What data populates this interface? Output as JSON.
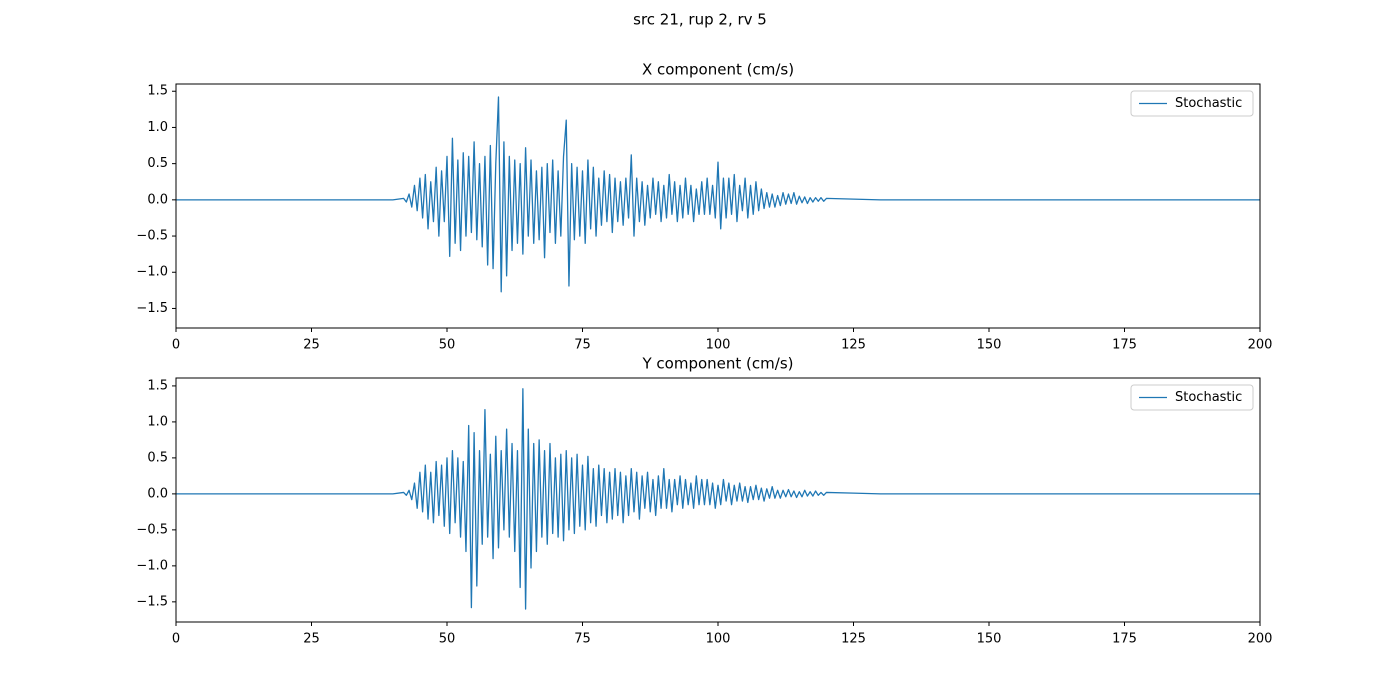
{
  "title": "src 21, rup 2, rv 5",
  "chart_data": [
    {
      "type": "line",
      "title": "X component (cm/s)",
      "x": [
        0,
        40,
        42,
        42.5,
        43,
        43.5,
        44,
        44.5,
        45,
        45.5,
        46,
        46.5,
        47,
        47.5,
        48,
        48.5,
        49,
        49.5,
        50,
        50.5,
        51,
        51.5,
        52,
        52.5,
        53,
        53.5,
        54,
        54.5,
        55,
        55.5,
        56,
        56.5,
        57,
        57.5,
        58,
        58.5,
        59,
        59.5,
        60,
        60.5,
        61,
        61.5,
        62,
        62.5,
        63,
        63.5,
        64,
        64.5,
        65,
        65.5,
        66,
        66.5,
        67,
        67.5,
        68,
        68.5,
        69,
        69.5,
        70,
        70.5,
        71,
        71.5,
        72,
        72.5,
        73,
        73.5,
        74,
        74.5,
        75,
        75.5,
        76,
        76.5,
        77,
        77.5,
        78,
        78.5,
        79,
        79.5,
        80,
        80.5,
        81,
        81.5,
        82,
        82.5,
        83,
        83.5,
        84,
        84.5,
        85,
        85.5,
        86,
        86.5,
        87,
        87.5,
        88,
        88.5,
        89,
        89.5,
        90,
        90.5,
        91,
        91.5,
        92,
        92.5,
        93,
        93.5,
        94,
        94.5,
        95,
        95.5,
        96,
        96.5,
        97,
        97.5,
        98,
        98.5,
        99,
        99.5,
        100,
        100.5,
        101,
        101.5,
        102,
        102.5,
        103,
        103.5,
        104,
        104.5,
        105,
        105.5,
        106,
        106.5,
        107,
        107.5,
        108,
        108.5,
        109,
        109.5,
        110,
        110.5,
        111,
        111.5,
        112,
        112.5,
        113,
        113.5,
        114,
        114.5,
        115,
        115.5,
        116,
        116.5,
        117,
        117.5,
        118,
        118.5,
        119,
        119.5,
        120,
        125,
        130,
        200
      ],
      "series": [
        {
          "name": "Stochastic",
          "color": "#1f77b4",
          "values": [
            0,
            0,
            0.02,
            -0.03,
            0.08,
            -0.1,
            0.2,
            -0.15,
            0.3,
            -0.25,
            0.35,
            -0.4,
            0.25,
            -0.3,
            0.45,
            -0.5,
            0.4,
            -0.3,
            0.6,
            -0.78,
            0.85,
            -0.6,
            0.55,
            -0.7,
            0.65,
            -0.5,
            0.6,
            -0.45,
            0.8,
            -0.55,
            0.5,
            -0.65,
            0.6,
            -0.9,
            0.75,
            -0.95,
            0.5,
            1.42,
            -1.27,
            0.8,
            -1.05,
            0.6,
            -0.7,
            0.55,
            -0.6,
            0.5,
            -0.75,
            0.72,
            -0.5,
            0.55,
            -0.6,
            0.4,
            -0.55,
            0.45,
            -0.8,
            0.5,
            -0.45,
            0.55,
            -0.6,
            0.4,
            -0.5,
            0.6,
            1.1,
            -1.19,
            0.5,
            -0.55,
            0.45,
            -0.5,
            0.4,
            -0.6,
            0.55,
            -0.4,
            0.45,
            -0.5,
            0.3,
            -0.35,
            0.4,
            -0.3,
            0.35,
            -0.45,
            0.3,
            -0.3,
            0.25,
            -0.35,
            0.3,
            -0.25,
            0.62,
            -0.5,
            0.3,
            -0.3,
            0.25,
            -0.35,
            0.2,
            -0.25,
            0.3,
            -0.2,
            0.25,
            -0.3,
            0.2,
            -0.25,
            0.35,
            -0.2,
            0.25,
            -0.3,
            0.2,
            -0.25,
            0.3,
            -0.2,
            0.2,
            -0.3,
            0.15,
            -0.2,
            0.25,
            -0.2,
            0.3,
            -0.2,
            0.2,
            -0.25,
            0.52,
            -0.4,
            0.3,
            -0.25,
            0.3,
            -0.2,
            0.35,
            -0.3,
            0.2,
            -0.15,
            0.3,
            -0.25,
            0.2,
            -0.2,
            0.25,
            -0.15,
            0.15,
            -0.12,
            0.1,
            -0.1,
            0.08,
            -0.1,
            0.06,
            -0.08,
            0.1,
            -0.06,
            0.08,
            -0.05,
            0.1,
            -0.06,
            0.05,
            -0.04,
            0.04,
            -0.05,
            0.03,
            -0.03,
            0.03,
            -0.02,
            0.03,
            -0.02,
            0.02,
            0.01,
            0,
            0
          ]
        }
      ],
      "xlim": [
        0,
        200
      ],
      "xticks": [
        0,
        25,
        50,
        75,
        100,
        125,
        150,
        175,
        200
      ],
      "ylim": [
        -1.77,
        1.6
      ],
      "yticks": [
        {
          "value": -1.5,
          "label": "−1.5"
        },
        {
          "value": -1.0,
          "label": "−1.0"
        },
        {
          "value": -0.5,
          "label": "−0.5"
        },
        {
          "value": 0,
          "label": "0.0"
        },
        {
          "value": 0.5,
          "label": "0.5"
        },
        {
          "value": 1.0,
          "label": "1.0"
        },
        {
          "value": 1.5,
          "label": "1.5"
        }
      ],
      "legend": "upper right"
    },
    {
      "type": "line",
      "title": "Y component (cm/s)",
      "x": [
        0,
        40,
        42,
        42.5,
        43,
        43.5,
        44,
        44.5,
        45,
        45.5,
        46,
        46.5,
        47,
        47.5,
        48,
        48.5,
        49,
        49.5,
        50,
        50.5,
        51,
        51.5,
        52,
        52.5,
        53,
        53.5,
        54,
        54.5,
        55,
        55.5,
        56,
        56.5,
        57,
        57.5,
        58,
        58.5,
        59,
        59.5,
        60,
        60.5,
        61,
        61.5,
        62,
        62.5,
        63,
        63.5,
        64,
        64.5,
        65,
        65.5,
        66,
        66.5,
        67,
        67.5,
        68,
        68.5,
        69,
        69.5,
        70,
        70.5,
        71,
        71.5,
        72,
        72.5,
        73,
        73.5,
        74,
        74.5,
        75,
        75.5,
        76,
        76.5,
        77,
        77.5,
        78,
        78.5,
        79,
        79.5,
        80,
        80.5,
        81,
        81.5,
        82,
        82.5,
        83,
        83.5,
        84,
        84.5,
        85,
        85.5,
        86,
        86.5,
        87,
        87.5,
        88,
        88.5,
        89,
        89.5,
        90,
        90.5,
        91,
        91.5,
        92,
        92.5,
        93,
        93.5,
        94,
        94.5,
        95,
        95.5,
        96,
        96.5,
        97,
        97.5,
        98,
        98.5,
        99,
        99.5,
        100,
        100.5,
        101,
        101.5,
        102,
        102.5,
        103,
        103.5,
        104,
        104.5,
        105,
        105.5,
        106,
        106.5,
        107,
        107.5,
        108,
        108.5,
        109,
        109.5,
        110,
        110.5,
        111,
        111.5,
        112,
        112.5,
        113,
        113.5,
        114,
        114.5,
        115,
        115.5,
        116,
        116.5,
        117,
        117.5,
        118,
        118.5,
        119,
        119.5,
        120,
        125,
        130,
        200
      ],
      "series": [
        {
          "name": "Stochastic",
          "color": "#1f77b4",
          "values": [
            0,
            0,
            0.02,
            -0.02,
            0.05,
            -0.08,
            0.15,
            -0.2,
            0.3,
            -0.25,
            0.4,
            -0.35,
            0.3,
            -0.4,
            0.45,
            -0.3,
            0.4,
            -0.45,
            0.5,
            -0.55,
            0.6,
            -0.4,
            0.5,
            -0.6,
            0.45,
            -0.8,
            0.95,
            -1.58,
            0.85,
            -1.28,
            0.6,
            -0.7,
            1.17,
            -0.6,
            0.55,
            -0.9,
            0.8,
            -0.75,
            0.6,
            -0.5,
            0.9,
            -0.6,
            0.7,
            -0.8,
            0.6,
            -1.3,
            1.46,
            -1.6,
            0.9,
            -1.03,
            0.7,
            -0.8,
            0.75,
            -0.6,
            0.6,
            -0.7,
            0.7,
            -0.55,
            0.5,
            -0.6,
            0.55,
            -0.65,
            0.6,
            -0.5,
            0.5,
            -0.55,
            0.55,
            -0.45,
            0.4,
            -0.5,
            0.52,
            -0.4,
            0.35,
            -0.45,
            0.4,
            -0.3,
            0.35,
            -0.4,
            0.3,
            -0.35,
            0.35,
            -0.3,
            0.3,
            -0.4,
            0.25,
            -0.3,
            0.35,
            -0.25,
            0.3,
            -0.35,
            0.25,
            -0.2,
            0.3,
            -0.25,
            0.2,
            -0.3,
            0.25,
            -0.2,
            0.35,
            -0.2,
            0.2,
            -0.25,
            0.2,
            -0.15,
            0.25,
            -0.2,
            0.2,
            -0.15,
            0.15,
            -0.2,
            0.25,
            -0.15,
            0.2,
            -0.15,
            0.2,
            -0.15,
            0.15,
            -0.2,
            0.12,
            -0.15,
            0.2,
            -0.1,
            0.15,
            -0.15,
            0.12,
            -0.1,
            0.15,
            -0.1,
            0.1,
            -0.12,
            0.1,
            -0.08,
            0.12,
            -0.08,
            0.08,
            -0.1,
            0.07,
            -0.06,
            0.1,
            -0.06,
            0.05,
            -0.06,
            0.05,
            -0.04,
            0.06,
            -0.04,
            0.04,
            -0.05,
            0.03,
            -0.04,
            0.05,
            -0.03,
            0.03,
            -0.03,
            0.04,
            -0.02,
            0.02,
            -0.02,
            0.02,
            0.01,
            0,
            0
          ]
        }
      ],
      "xlim": [
        0,
        200
      ],
      "xticks": [
        0,
        25,
        50,
        75,
        100,
        125,
        150,
        175,
        200
      ],
      "ylim": [
        -1.78,
        1.61
      ],
      "yticks": [
        {
          "value": -1.5,
          "label": "−1.5"
        },
        {
          "value": -1.0,
          "label": "−1.0"
        },
        {
          "value": -0.5,
          "label": "−0.5"
        },
        {
          "value": 0,
          "label": "0.0"
        },
        {
          "value": 0.5,
          "label": "0.5"
        },
        {
          "value": 1.0,
          "label": "1.0"
        },
        {
          "value": 1.5,
          "label": "1.5"
        }
      ],
      "legend": "upper right"
    }
  ]
}
